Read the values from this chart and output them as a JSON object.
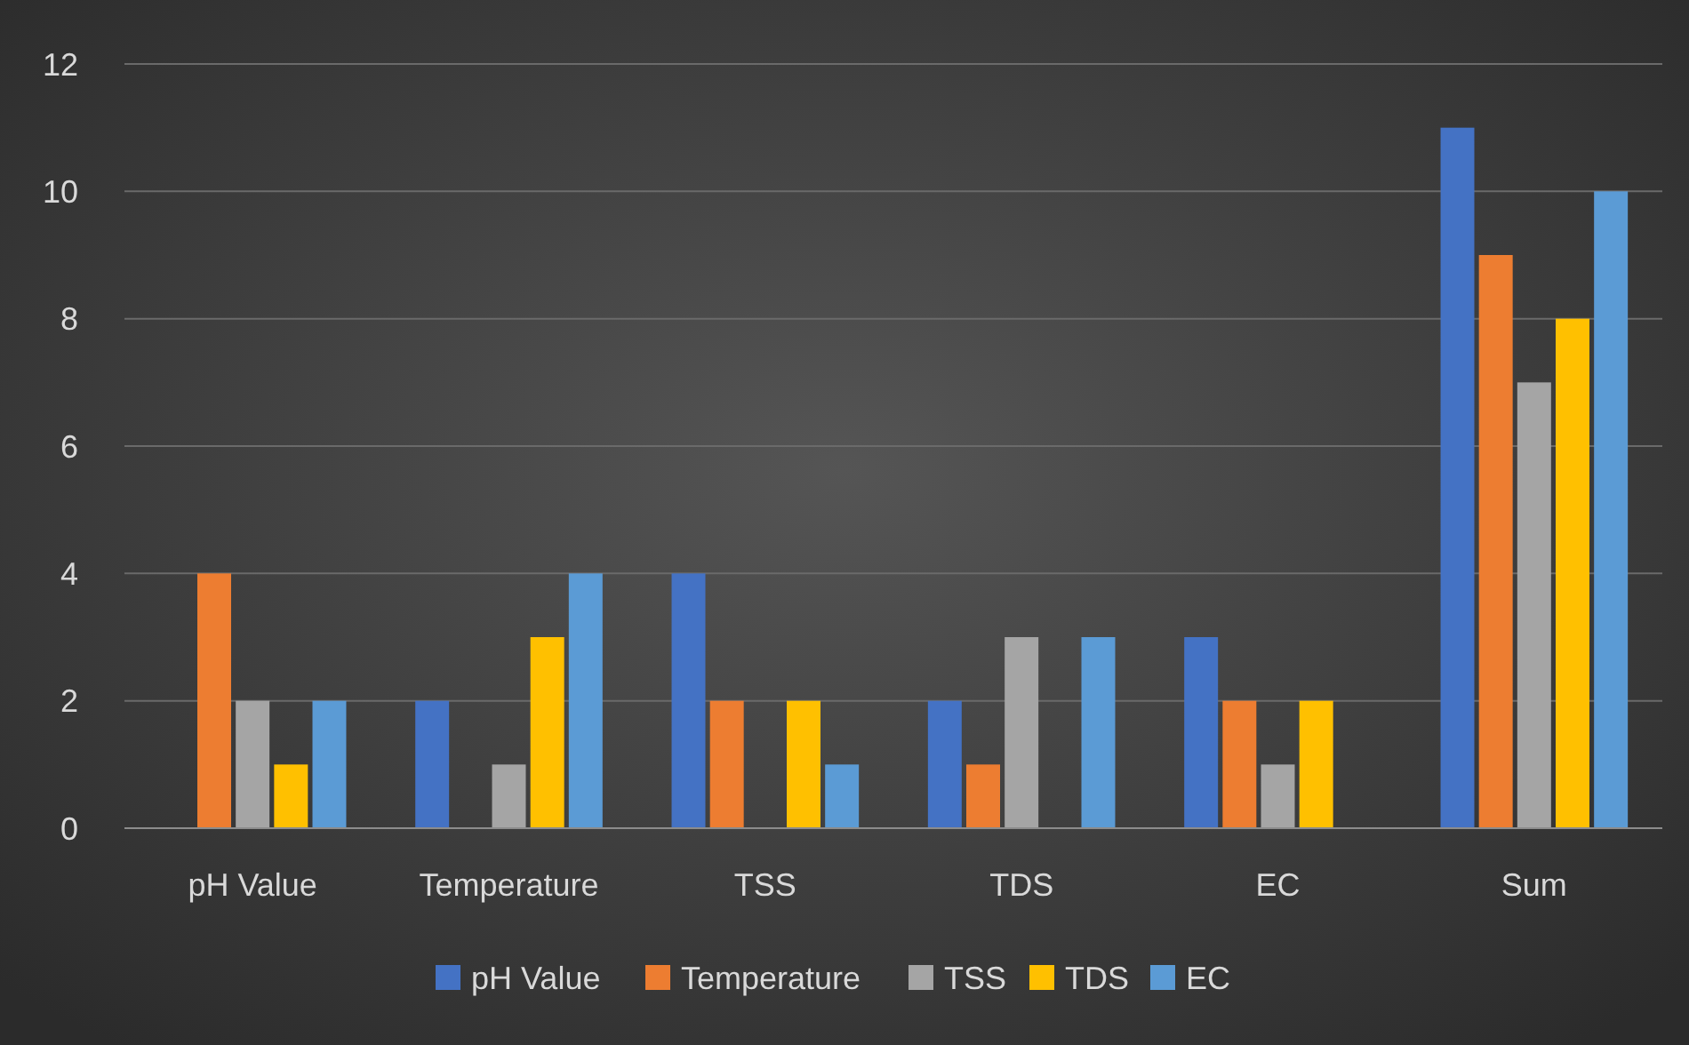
{
  "chart_data": {
    "type": "bar",
    "categories": [
      "pH Value",
      "Temperature",
      "TSS",
      "TDS",
      "EC",
      "Sum"
    ],
    "series": [
      {
        "name": "pH Value",
        "color": "#4472c4",
        "values": [
          0,
          2,
          4,
          2,
          3,
          11
        ]
      },
      {
        "name": "Temperature",
        "color": "#ed7d31",
        "values": [
          4,
          0,
          2,
          1,
          2,
          9
        ]
      },
      {
        "name": "TSS",
        "color": "#a5a5a5",
        "values": [
          2,
          1,
          0,
          3,
          1,
          7
        ]
      },
      {
        "name": "TDS",
        "color": "#ffc000",
        "values": [
          1,
          3,
          2,
          0,
          2,
          8
        ]
      },
      {
        "name": "EC",
        "color": "#5b9bd5",
        "values": [
          2,
          4,
          1,
          3,
          0,
          10
        ]
      }
    ],
    "ylim": [
      0,
      12
    ],
    "yticks": [
      0,
      2,
      4,
      6,
      8,
      10,
      12
    ],
    "grid": "y",
    "legend": "bottom"
  }
}
